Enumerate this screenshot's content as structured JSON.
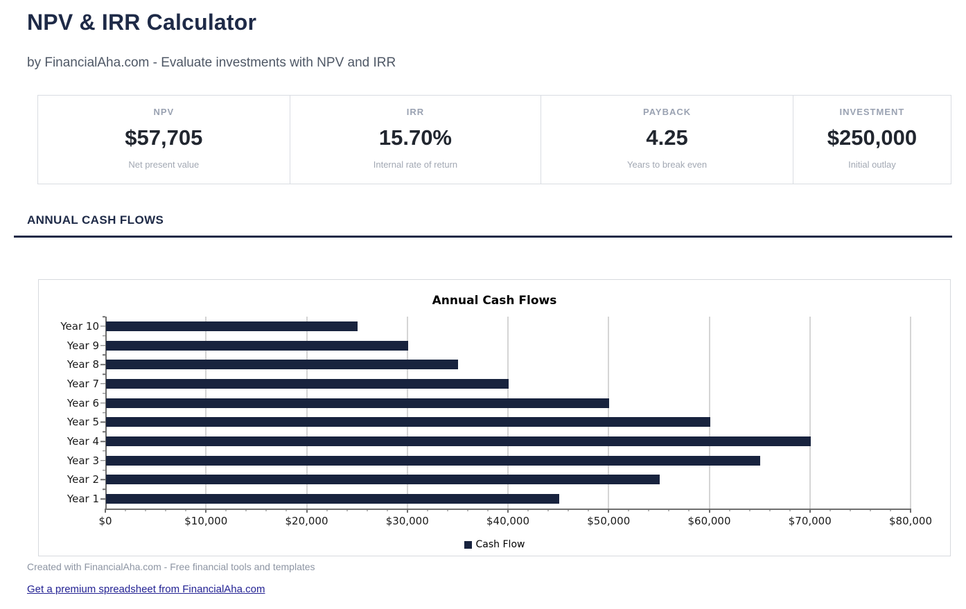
{
  "header": {
    "title": "NPV & IRR Calculator",
    "subtitle": "by FinancialAha.com - Evaluate investments with NPV and IRR"
  },
  "stats": [
    {
      "label": "NPV",
      "value": "$57,705",
      "caption": "Net present value"
    },
    {
      "label": "IRR",
      "value": "15.70%",
      "caption": "Internal rate of return"
    },
    {
      "label": "PAYBACK",
      "value": "4.25",
      "caption": "Years to break even"
    },
    {
      "label": "INVESTMENT",
      "value": "$250,000",
      "caption": "Initial outlay"
    }
  ],
  "section": {
    "title": "ANNUAL CASH FLOWS"
  },
  "chart_data": {
    "type": "bar",
    "orientation": "horizontal",
    "title": "Annual Cash Flows",
    "categories": [
      "Year 1",
      "Year 2",
      "Year 3",
      "Year 4",
      "Year 5",
      "Year 6",
      "Year 7",
      "Year 8",
      "Year 9",
      "Year 10"
    ],
    "values": [
      45000,
      55000,
      65000,
      70000,
      60000,
      50000,
      40000,
      35000,
      30000,
      25000
    ],
    "series_name": "Cash Flow",
    "xlim": [
      0,
      80000
    ],
    "x_major_step": 10000,
    "x_minor_step": 2000,
    "x_tick_labels": [
      "$0",
      "$10,000",
      "$20,000",
      "$30,000",
      "$40,000",
      "$50,000",
      "$60,000",
      "$70,000",
      "$80,000"
    ],
    "grid": true,
    "legend_position": "bottom",
    "bar_color": "#18233e",
    "category_order_top_to_bottom": [
      "Year 10",
      "Year 9",
      "Year 8",
      "Year 7",
      "Year 6",
      "Year 5",
      "Year 4",
      "Year 3",
      "Year 2",
      "Year 1"
    ]
  },
  "footer": {
    "credit": "Created with FinancialAha.com - Free financial tools and templates",
    "link_label": "Get a premium spreadsheet from FinancialAha.com"
  },
  "colors": {
    "heading_navy": "#1e2a47",
    "bar_navy": "#18233e",
    "link_blue": "#232293",
    "muted_gray": "#9aa2b2",
    "border_gray": "#d9dce2"
  }
}
